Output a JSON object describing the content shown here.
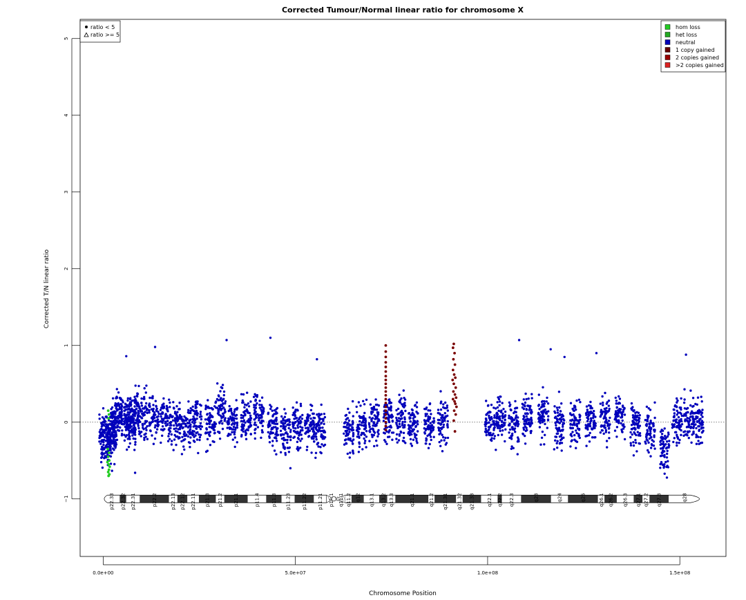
{
  "chart_data": {
    "type": "scatter",
    "title": "Corrected Tumour/Normal linear ratio for chromosome  X",
    "xlabel": "Chromosome Position",
    "ylabel": "Corrected T/N linear ratio",
    "xlim": [
      -6000000,
      162000000
    ],
    "ylim": [
      -1.75,
      5.25
    ],
    "x_ticks": [
      {
        "value": 0,
        "label": "0.0e+00"
      },
      {
        "value": 50000000,
        "label": "5.0e+07"
      },
      {
        "value": 100000000,
        "label": "1.0e+08"
      },
      {
        "value": 150000000,
        "label": "1.5e+08"
      }
    ],
    "y_ticks": [
      {
        "value": -1,
        "label": "−1"
      },
      {
        "value": 0,
        "label": "0"
      },
      {
        "value": 1,
        "label": "1"
      },
      {
        "value": 2,
        "label": "2"
      },
      {
        "value": 3,
        "label": "3"
      },
      {
        "value": 4,
        "label": "4"
      },
      {
        "value": 5,
        "label": "5"
      }
    ],
    "reference_line_y": 0,
    "shape_legend": [
      {
        "label": "ratio < 5",
        "symbol": "dot"
      },
      {
        "label": "ratio >= 5",
        "symbol": "triangle"
      }
    ],
    "legend": [
      {
        "label": "hom loss",
        "color": "#22cc22"
      },
      {
        "label": "het loss",
        "color": "#22aa22"
      },
      {
        "label": "neutral",
        "color": "#0000bb"
      },
      {
        "label": "1 copy gained",
        "color": "#660000"
      },
      {
        "label": "2 copies gained",
        "color": "#990000"
      },
      {
        "label": ">2 copies gained",
        "color": "#dd2222"
      }
    ],
    "colors": {
      "neutral": "#0000bb",
      "loss": "#22cc22",
      "gain": "#7a0000"
    },
    "gain_points": [
      {
        "x": 73500000,
        "y": 1.0
      },
      {
        "x": 73500000,
        "y": 0.92
      },
      {
        "x": 73500000,
        "y": 0.85
      },
      {
        "x": 73500000,
        "y": 0.78
      },
      {
        "x": 73500000,
        "y": 0.72
      },
      {
        "x": 73500000,
        "y": 0.66
      },
      {
        "x": 73500000,
        "y": 0.6
      },
      {
        "x": 73500000,
        "y": 0.55
      },
      {
        "x": 73500000,
        "y": 0.5
      },
      {
        "x": 73500000,
        "y": 0.45
      },
      {
        "x": 73500000,
        "y": 0.4
      },
      {
        "x": 73500000,
        "y": 0.35
      },
      {
        "x": 73500000,
        "y": 0.3
      },
      {
        "x": 73500000,
        "y": 0.25
      },
      {
        "x": 73500000,
        "y": 0.2
      },
      {
        "x": 73500000,
        "y": 0.15
      },
      {
        "x": 73500000,
        "y": 0.1
      },
      {
        "x": 73500000,
        "y": 0.05
      },
      {
        "x": 73500000,
        "y": 0.0
      },
      {
        "x": 73500000,
        "y": -0.05
      },
      {
        "x": 73500000,
        "y": -0.1
      },
      {
        "x": 91200000,
        "y": 1.02
      },
      {
        "x": 91000000,
        "y": 0.97
      },
      {
        "x": 91400000,
        "y": 0.9
      },
      {
        "x": 91100000,
        "y": 0.82
      },
      {
        "x": 91500000,
        "y": 0.75
      },
      {
        "x": 91000000,
        "y": 0.68
      },
      {
        "x": 91300000,
        "y": 0.62
      },
      {
        "x": 91600000,
        "y": 0.58
      },
      {
        "x": 90900000,
        "y": 0.55
      },
      {
        "x": 91200000,
        "y": 0.5
      },
      {
        "x": 91700000,
        "y": 0.45
      },
      {
        "x": 91100000,
        "y": 0.4
      },
      {
        "x": 91500000,
        "y": 0.36
      },
      {
        "x": 91800000,
        "y": 0.32
      },
      {
        "x": 91000000,
        "y": 0.3
      },
      {
        "x": 91400000,
        "y": 0.27
      },
      {
        "x": 91600000,
        "y": 0.24
      },
      {
        "x": 91900000,
        "y": 0.2
      },
      {
        "x": 91300000,
        "y": 0.15
      },
      {
        "x": 91700000,
        "y": 0.1
      },
      {
        "x": 91200000,
        "y": 0.02
      },
      {
        "x": 91500000,
        "y": -0.12
      }
    ],
    "loss_points": [
      {
        "x": 1300000,
        "y": 0.15
      },
      {
        "x": 1500000,
        "y": 0.1
      },
      {
        "x": 1400000,
        "y": 0.05
      },
      {
        "x": 1200000,
        "y": -0.35
      },
      {
        "x": 1500000,
        "y": -0.4
      },
      {
        "x": 1300000,
        "y": -0.45
      },
      {
        "x": 1600000,
        "y": -0.5
      },
      {
        "x": 1100000,
        "y": -0.52
      },
      {
        "x": 1400000,
        "y": -0.55
      },
      {
        "x": 1700000,
        "y": -0.58
      },
      {
        "x": 1500000,
        "y": -0.62
      },
      {
        "x": 1300000,
        "y": -0.65
      },
      {
        "x": 1600000,
        "y": -0.68
      },
      {
        "x": 1400000,
        "y": -0.7
      }
    ],
    "neutral_clusters": [
      {
        "x": 300000,
        "y": -0.15
      },
      {
        "x": 800000,
        "y": -0.3
      },
      {
        "x": 2200000,
        "y": -0.2
      },
      {
        "x": 3000000,
        "y": 0.0
      },
      {
        "x": 3600000,
        "y": 0.1
      },
      {
        "x": 5800000,
        "y": 0.05
      },
      {
        "x": 7200000,
        "y": -0.05
      },
      {
        "x": 8200000,
        "y": 0.15
      },
      {
        "x": 10200000,
        "y": 0.1
      },
      {
        "x": 13200000,
        "y": 0.05
      },
      {
        "x": 16200000,
        "y": 0.05
      },
      {
        "x": 18800000,
        "y": 0.0
      },
      {
        "x": 21600000,
        "y": -0.05
      },
      {
        "x": 24400000,
        "y": 0.05
      },
      {
        "x": 27800000,
        "y": 0.0
      },
      {
        "x": 30500000,
        "y": 0.15
      },
      {
        "x": 33600000,
        "y": 0.0
      },
      {
        "x": 37200000,
        "y": 0.05
      },
      {
        "x": 40500000,
        "y": 0.1
      },
      {
        "x": 44200000,
        "y": -0.05
      },
      {
        "x": 47500000,
        "y": -0.1
      },
      {
        "x": 50600000,
        "y": -0.05
      },
      {
        "x": 53800000,
        "y": -0.05
      },
      {
        "x": 56500000,
        "y": -0.1
      },
      {
        "x": 63800000,
        "y": -0.1
      },
      {
        "x": 67200000,
        "y": -0.05
      },
      {
        "x": 70500000,
        "y": 0.0
      },
      {
        "x": 74200000,
        "y": 0.05
      },
      {
        "x": 77500000,
        "y": 0.05
      },
      {
        "x": 80600000,
        "y": 0.0
      },
      {
        "x": 84800000,
        "y": -0.05
      },
      {
        "x": 88400000,
        "y": 0.0
      },
      {
        "x": 100600000,
        "y": 0.0
      },
      {
        "x": 103400000,
        "y": 0.05
      },
      {
        "x": 106800000,
        "y": 0.0
      },
      {
        "x": 110300000,
        "y": 0.1
      },
      {
        "x": 114500000,
        "y": 0.05
      },
      {
        "x": 118600000,
        "y": -0.05
      },
      {
        "x": 122800000,
        "y": 0.0
      },
      {
        "x": 126800000,
        "y": 0.0
      },
      {
        "x": 130600000,
        "y": 0.05
      },
      {
        "x": 134400000,
        "y": 0.1
      },
      {
        "x": 138400000,
        "y": -0.05
      },
      {
        "x": 142300000,
        "y": -0.1
      },
      {
        "x": 146200000,
        "y": -0.35
      },
      {
        "x": 149300000,
        "y": 0.0
      },
      {
        "x": 152300000,
        "y": 0.05
      },
      {
        "x": 154800000,
        "y": 0.0
      }
    ],
    "neutral_outliers": [
      {
        "x": 6000000,
        "y": 0.86
      },
      {
        "x": 13500000,
        "y": 0.98
      },
      {
        "x": 32100000,
        "y": 1.07
      },
      {
        "x": 43500000,
        "y": 1.1
      },
      {
        "x": 55600000,
        "y": 0.82
      },
      {
        "x": 108200000,
        "y": 1.07
      },
      {
        "x": 120000000,
        "y": 0.85
      },
      {
        "x": 116400000,
        "y": 0.95
      },
      {
        "x": 128300000,
        "y": 0.9
      },
      {
        "x": 151600000,
        "y": 0.88
      },
      {
        "x": 8300000,
        "y": -0.66
      },
      {
        "x": 48700000,
        "y": -0.6
      }
    ],
    "ideogram": {
      "start": 0,
      "end": 155270560,
      "centromere": 60000000,
      "bands": [
        {
          "name": "p22.33",
          "start": 0,
          "end": 4300000,
          "stain": "gneg"
        },
        {
          "name": "p22.32",
          "start": 4300000,
          "end": 6000000,
          "stain": "gpos50"
        },
        {
          "name": "p22.31",
          "start": 6000000,
          "end": 9500000,
          "stain": "gneg"
        },
        {
          "name": "p22.2",
          "start": 9500000,
          "end": 17100000,
          "stain": "gpos50"
        },
        {
          "name": "p22.13",
          "start": 17100000,
          "end": 19300000,
          "stain": "gneg"
        },
        {
          "name": "p22.12",
          "start": 19300000,
          "end": 21900000,
          "stain": "gpos50"
        },
        {
          "name": "p22.11",
          "start": 21900000,
          "end": 24900000,
          "stain": "gneg"
        },
        {
          "name": "p21.3",
          "start": 24900000,
          "end": 29300000,
          "stain": "gpos100"
        },
        {
          "name": "p21.2",
          "start": 29300000,
          "end": 31500000,
          "stain": "gneg"
        },
        {
          "name": "p21.1",
          "start": 31500000,
          "end": 37600000,
          "stain": "gpos100"
        },
        {
          "name": "p11.4",
          "start": 37600000,
          "end": 42400000,
          "stain": "gneg"
        },
        {
          "name": "p11.3",
          "start": 42400000,
          "end": 46400000,
          "stain": "gpos75"
        },
        {
          "name": "p11.23",
          "start": 46400000,
          "end": 49800000,
          "stain": "gneg"
        },
        {
          "name": "p11.22",
          "start": 49800000,
          "end": 54800000,
          "stain": "gpos25"
        },
        {
          "name": "p11.21",
          "start": 54800000,
          "end": 58100000,
          "stain": "gneg"
        },
        {
          "name": "p11.1",
          "start": 58100000,
          "end": 60600000,
          "stain": "acen"
        },
        {
          "name": "q11.1",
          "start": 60600000,
          "end": 63000000,
          "stain": "acen"
        },
        {
          "name": "q11.2",
          "start": 63000000,
          "end": 64600000,
          "stain": "gneg"
        },
        {
          "name": "q12",
          "start": 64600000,
          "end": 67800000,
          "stain": "gpos50"
        },
        {
          "name": "q13.1",
          "start": 67800000,
          "end": 71800000,
          "stain": "gneg"
        },
        {
          "name": "q13.2",
          "start": 71800000,
          "end": 73900000,
          "stain": "gpos50"
        },
        {
          "name": "q13.3",
          "start": 73900000,
          "end": 76000000,
          "stain": "gneg"
        },
        {
          "name": "q21.1",
          "start": 76000000,
          "end": 84600000,
          "stain": "gpos100"
        },
        {
          "name": "q21.2",
          "start": 84600000,
          "end": 86200000,
          "stain": "gneg"
        },
        {
          "name": "q21.31",
          "start": 86200000,
          "end": 91800000,
          "stain": "gpos100"
        },
        {
          "name": "q21.32",
          "start": 91800000,
          "end": 93500000,
          "stain": "gneg"
        },
        {
          "name": "q21.33",
          "start": 93500000,
          "end": 98300000,
          "stain": "gpos75"
        },
        {
          "name": "q22.1",
          "start": 98300000,
          "end": 102600000,
          "stain": "gneg"
        },
        {
          "name": "q22.2",
          "start": 102600000,
          "end": 103700000,
          "stain": "gpos50"
        },
        {
          "name": "q22.3",
          "start": 103700000,
          "end": 108700000,
          "stain": "gneg"
        },
        {
          "name": "q23",
          "start": 108700000,
          "end": 116500000,
          "stain": "gpos75"
        },
        {
          "name": "q24",
          "start": 116500000,
          "end": 120900000,
          "stain": "gneg"
        },
        {
          "name": "q25",
          "start": 120900000,
          "end": 128700000,
          "stain": "gpos100"
        },
        {
          "name": "q26.1",
          "start": 128700000,
          "end": 130400000,
          "stain": "gneg"
        },
        {
          "name": "q26.2",
          "start": 130400000,
          "end": 133600000,
          "stain": "gpos25"
        },
        {
          "name": "q26.3",
          "start": 133600000,
          "end": 138000000,
          "stain": "gneg"
        },
        {
          "name": "q27.1",
          "start": 138000000,
          "end": 140300000,
          "stain": "gpos75"
        },
        {
          "name": "q27.2",
          "start": 140300000,
          "end": 142100000,
          "stain": "gneg"
        },
        {
          "name": "q27.3",
          "start": 142100000,
          "end": 147100000,
          "stain": "gpos100"
        },
        {
          "name": "q28",
          "start": 147100000,
          "end": 155270560,
          "stain": "gneg"
        }
      ]
    }
  }
}
